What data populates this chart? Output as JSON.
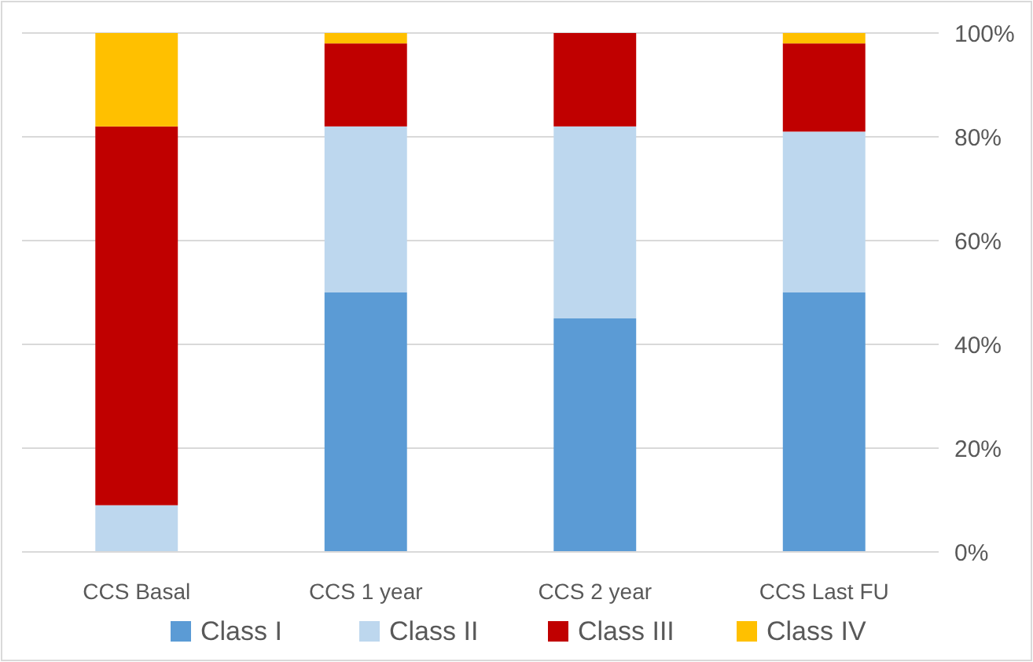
{
  "chart_data": {
    "type": "bar",
    "stacked": true,
    "categories": [
      "CCS Basal",
      "CCS 1 year",
      "CCS 2 year",
      "CCS Last FU"
    ],
    "series": [
      {
        "name": "Class I",
        "color": "#5b9bd5",
        "values": [
          0,
          50,
          45,
          50
        ]
      },
      {
        "name": "Class II",
        "color": "#bdd7ee",
        "values": [
          9,
          32,
          37,
          31
        ]
      },
      {
        "name": "Class III",
        "color": "#c00000",
        "values": [
          73,
          16,
          18,
          17
        ]
      },
      {
        "name": "Class IV",
        "color": "#ffc000",
        "values": [
          18,
          2,
          0,
          2
        ]
      }
    ],
    "ylim": [
      0,
      100
    ],
    "yticks": [
      {
        "value": 0,
        "label": "0%"
      },
      {
        "value": 20,
        "label": "20%"
      },
      {
        "value": 40,
        "label": "40%"
      },
      {
        "value": 60,
        "label": "60%"
      },
      {
        "value": 80,
        "label": "80%"
      },
      {
        "value": 100,
        "label": "100%"
      }
    ],
    "grid": "y",
    "legend": "bottom"
  }
}
